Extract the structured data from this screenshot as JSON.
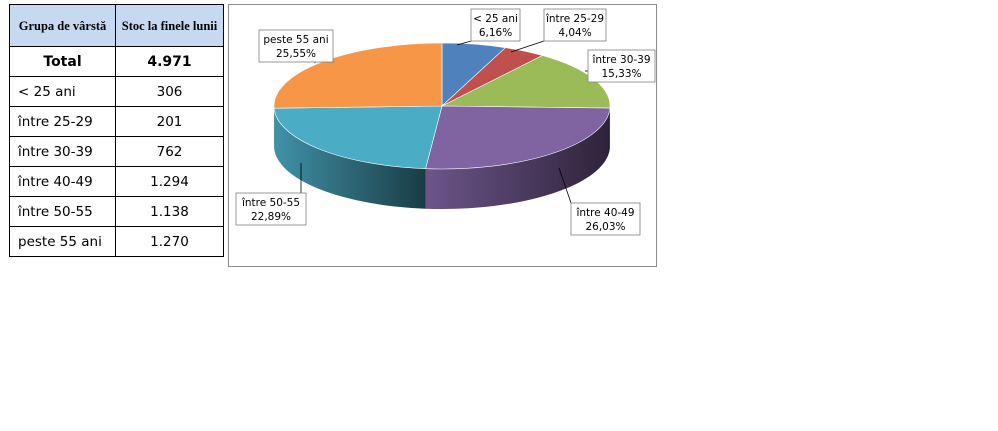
{
  "table": {
    "headers": [
      "Grupa de vârstă",
      "Stoc la finele lunii"
    ],
    "total": {
      "label": "Total",
      "value": "4.971"
    },
    "rows": [
      {
        "label": "< 25 ani",
        "value": "306"
      },
      {
        "label": "între 25-29",
        "value": "201"
      },
      {
        "label": "între 30-39",
        "value": "762"
      },
      {
        "label": "între 40-49",
        "value": "1.294"
      },
      {
        "label": "între 50-55",
        "value": "1.138"
      },
      {
        "label": "peste 55 ani",
        "value": "1.270"
      }
    ]
  },
  "chart_data": {
    "type": "pie",
    "three_d": true,
    "legend": "none",
    "slices": [
      {
        "name": "< 25 ani",
        "value": 6.16,
        "label": "6,16%",
        "color": "#4f81bd"
      },
      {
        "name": "între 25-29",
        "value": 4.04,
        "label": "4,04%",
        "color": "#c0504d"
      },
      {
        "name": "între 30-39",
        "value": 15.33,
        "label": "15,33%",
        "color": "#9bbb59"
      },
      {
        "name": "între 40-49",
        "value": 26.03,
        "label": "26,03%",
        "color": "#8064a2"
      },
      {
        "name": "între 50-55",
        "value": 22.89,
        "label": "22,89%",
        "color": "#4bacc6"
      },
      {
        "name": "peste 55 ani",
        "value": 25.55,
        "label": "25,55%",
        "color": "#f79646"
      }
    ]
  }
}
